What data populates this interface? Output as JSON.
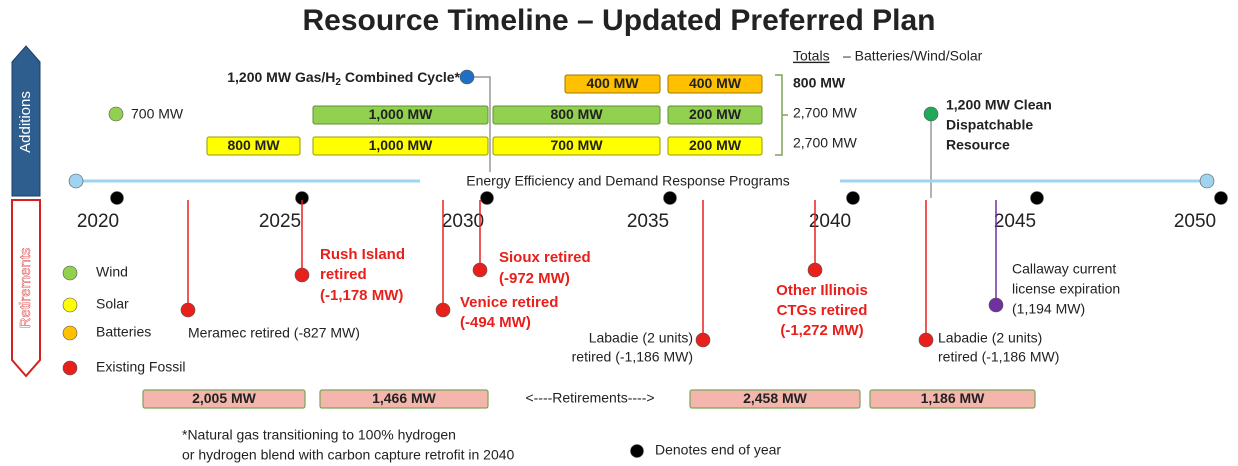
{
  "title": "Resource Timeline – Updated Preferred Plan",
  "side_labels": [
    "Additions",
    "Retirements"
  ],
  "totals_header": [
    "Totals",
    "– Batteries/Wind/Solar"
  ],
  "totals": [
    "800 MW",
    "2,700 MW",
    "2,700 MW"
  ],
  "batteries": [
    "400 MW",
    "400 MW"
  ],
  "wind": [
    "1,000 MW",
    "800 MW",
    "200 MW"
  ],
  "solar": [
    "800 MW",
    "1,000 MW",
    "700 MW",
    "200 MW"
  ],
  "wind_single": "700 MW",
  "gas_label": [
    "1,200 MW Gas/H",
    "2",
    " Combined Cycle*"
  ],
  "clean_label": [
    "1,200 MW Clean",
    "Dispatchable",
    "Resource"
  ],
  "programs": "Energy Efficiency and Demand Response Programs",
  "years": [
    "2020",
    "2025",
    "2030",
    "2035",
    "2040",
    "2045",
    "2050"
  ],
  "retirements": [
    [
      "Meramec retired (-827 MW)"
    ],
    [
      "Rush Island",
      "retired",
      "(-1,178 MW)"
    ],
    [
      "Venice retired",
      "(-494 MW)"
    ],
    [
      "Sioux retired",
      "(-972 MW)"
    ],
    [
      "Labadie (2 units)",
      "retired (-1,186 MW)"
    ],
    [
      "Other Illinois",
      "CTGs retired",
      "(-1,272 MW)"
    ],
    [
      "Labadie (2 units)",
      "retired (-1,186 MW)"
    ],
    [
      "Callaway current",
      "license expiration",
      "(1,194 MW)"
    ]
  ],
  "legend": [
    "Wind",
    "Solar",
    "Batteries",
    "Existing Fossil"
  ],
  "retirement_totals": [
    "2,005 MW",
    "1,466 MW",
    "2,458 MW",
    "1,186 MW"
  ],
  "retirements_arrow": "<----Retirements---->",
  "footnote": [
    "*Natural gas transitioning to 100% hydrogen",
    "or hydrogen blend  with carbon capture retrofit in 2040"
  ],
  "end_of_year": "Denotes end of year"
}
